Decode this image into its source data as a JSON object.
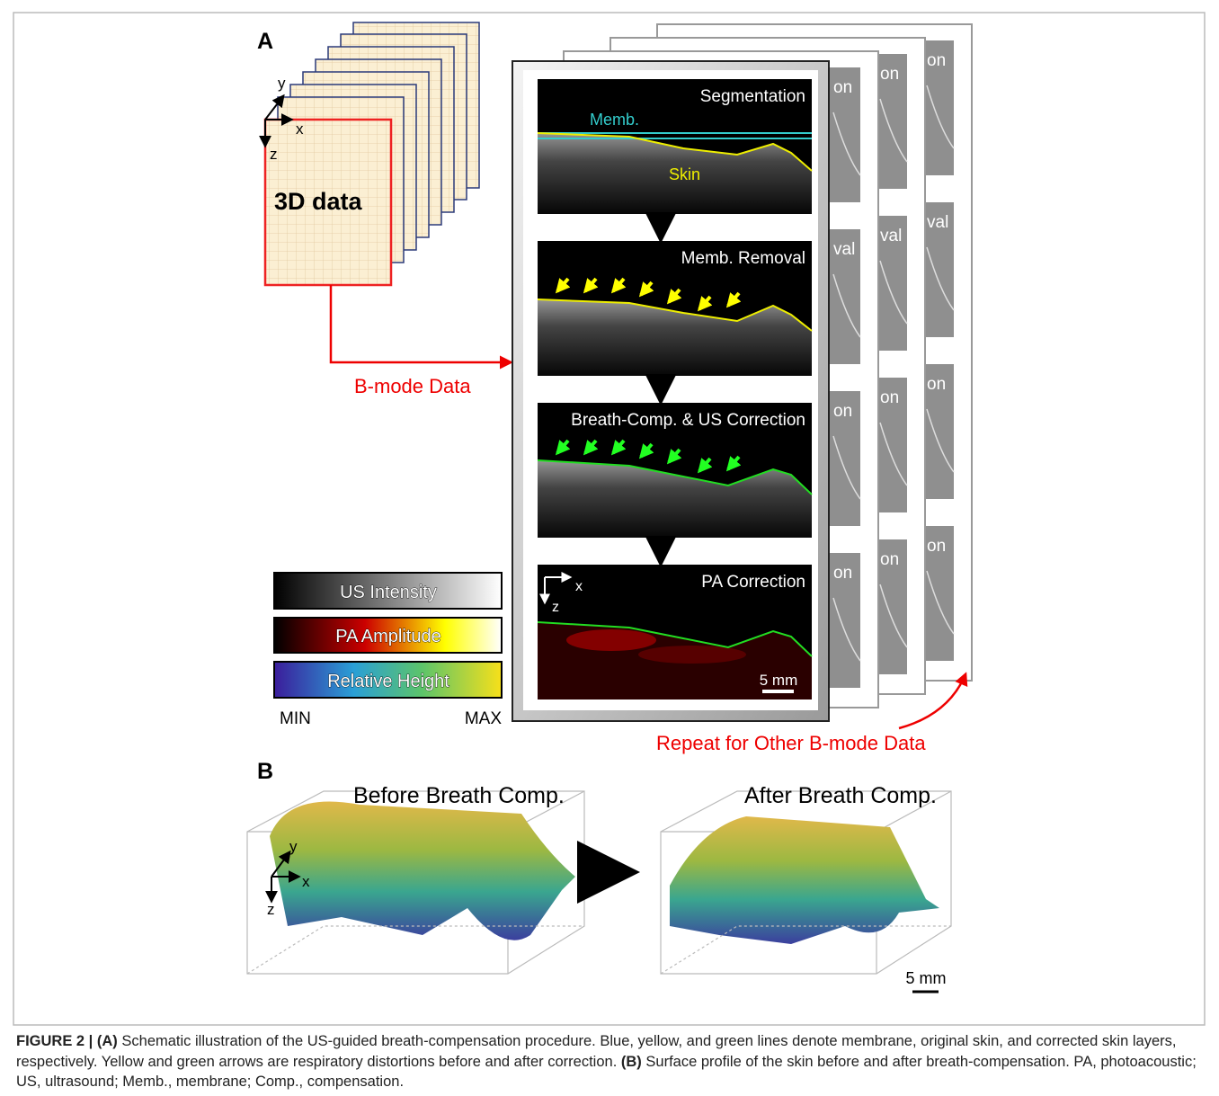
{
  "panel_a": {
    "label": "A",
    "volume": {
      "label": "3D data",
      "axes": [
        "x",
        "y",
        "z"
      ]
    },
    "arrow_label": "B-mode Data",
    "steps": [
      {
        "title": "Segmentation",
        "annotations": [
          "Memb.",
          "Skin"
        ]
      },
      {
        "title": "Memb. Removal"
      },
      {
        "title": "Breath-Comp. & US Correction"
      },
      {
        "title": "PA Correction",
        "axes": [
          "x",
          "z"
        ],
        "scale_bar": "5 mm"
      }
    ],
    "stack_fragments": [
      [
        "on",
        "val",
        "on",
        "on"
      ],
      [
        "on",
        "val",
        "on",
        "on"
      ],
      [
        "on",
        "val",
        "on",
        "on"
      ]
    ],
    "colorbars": [
      "US Intensity",
      "PA Amplitude",
      "Relative Height"
    ],
    "colorbar_min": "MIN",
    "colorbar_max": "MAX",
    "repeat_label": "Repeat for Other B-mode Data"
  },
  "panel_b": {
    "label": "B",
    "plots": [
      {
        "title": "Before Breath Comp."
      },
      {
        "title": "After Breath Comp."
      }
    ],
    "axes": [
      "x",
      "y",
      "z"
    ],
    "scale_bar": "5 mm"
  },
  "caption": {
    "label": "FIGURE 2 |",
    "part_a": "(A)",
    "text_a": "Schematic illustration of the US-guided breath-compensation procedure. Blue, yellow, and green lines denote membrane, original skin, and corrected skin layers, respectively. Yellow and green arrows are respiratory distortions before and after correction.",
    "part_b": "(B)",
    "text_b": "Surface profile of the skin before and after breath-compensation. PA, photoacoustic; US, ultrasound; Memb., membrane; Comp., compensation."
  }
}
